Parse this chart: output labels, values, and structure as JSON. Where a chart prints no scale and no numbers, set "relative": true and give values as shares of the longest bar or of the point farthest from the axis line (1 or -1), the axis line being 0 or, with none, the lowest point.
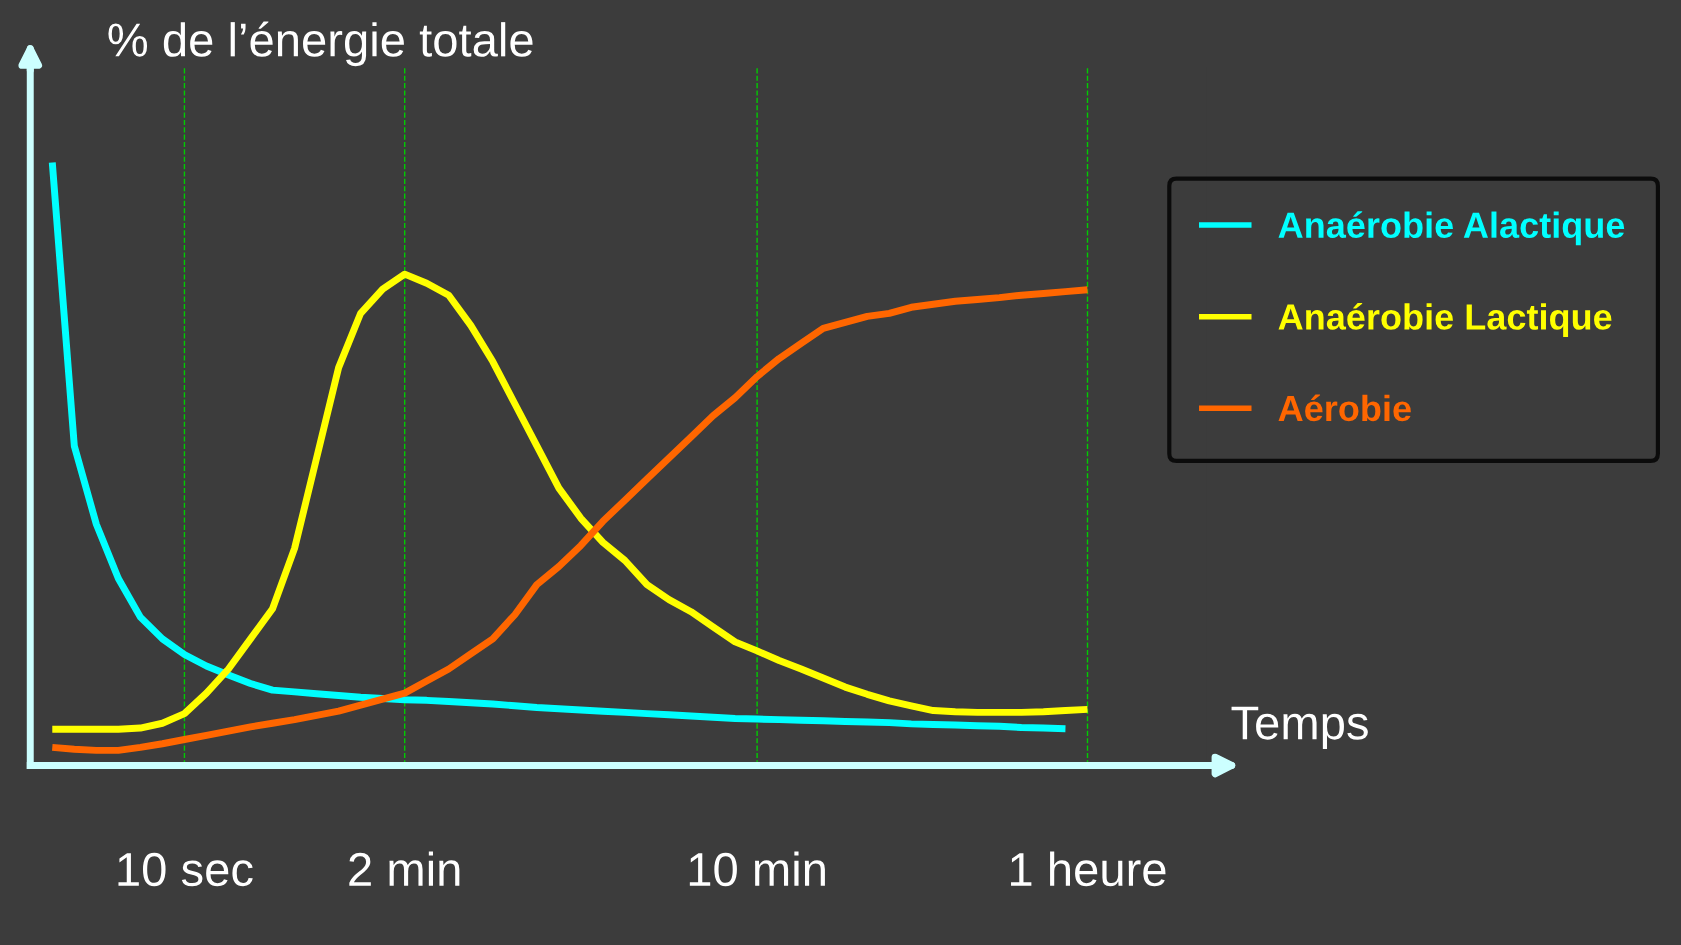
{
  "chart_data": {
    "type": "line",
    "relative": true,
    "xlabel": "Temps",
    "ylabel": "% de l’énergie totale",
    "categories": [
      null,
      null,
      null,
      null,
      null,
      null,
      null,
      "10 sec",
      null,
      null,
      null,
      null,
      null,
      null,
      null,
      null,
      null,
      "2 min",
      null,
      null,
      null,
      null,
      null,
      null,
      null,
      null,
      null,
      null,
      null,
      null,
      null,
      null,
      null,
      "10 min",
      null,
      null,
      null,
      null,
      null,
      null,
      null,
      null,
      null,
      null,
      null,
      null,
      null,
      null,
      "1 heure",
      null,
      null,
      null,
      null,
      null
    ],
    "grid": "x",
    "legend": "right",
    "series": [
      {
        "name": "Anaérobie Alactique",
        "color": "#00ffff",
        "values": [
          null,
          1.0,
          0.53,
          0.4,
          0.31,
          0.246,
          0.21,
          0.184,
          0.165,
          0.15,
          0.136,
          0.125,
          0.122,
          0.119,
          0.116,
          0.113,
          0.111,
          0.109,
          0.108,
          0.106,
          0.104,
          0.102,
          0.099,
          0.096,
          0.094,
          0.092,
          0.09,
          0.088,
          0.086,
          0.084,
          0.082,
          0.08,
          0.078,
          0.077,
          0.076,
          0.075,
          0.074,
          0.073,
          0.072,
          0.071,
          0.069,
          0.068,
          0.067,
          0.066,
          0.065,
          0.063,
          0.062,
          0.061,
          null,
          null,
          null,
          null,
          null,
          null
        ]
      },
      {
        "name": "Anaérobie Lactique",
        "color": "#ffff00",
        "values": [
          null,
          0.06,
          0.06,
          0.06,
          0.06,
          0.062,
          0.07,
          0.086,
          0.12,
          0.16,
          0.21,
          0.26,
          0.36,
          0.51,
          0.66,
          0.75,
          0.79,
          0.815,
          0.8,
          0.78,
          0.73,
          0.67,
          0.6,
          0.53,
          0.46,
          0.41,
          0.37,
          0.34,
          0.3,
          0.275,
          0.255,
          0.23,
          0.205,
          0.19,
          0.174,
          0.16,
          0.145,
          0.13,
          0.118,
          0.107,
          0.099,
          0.091,
          0.089,
          0.088,
          0.088,
          0.088,
          0.089,
          0.091,
          0.093,
          null,
          null,
          null,
          null,
          null
        ]
      },
      {
        "name": "Aérobie",
        "color": "#ff6600",
        "values": [
          null,
          0.03,
          0.027,
          0.025,
          0.025,
          0.03,
          0.036,
          0.043,
          0.05,
          0.057,
          0.064,
          0.07,
          0.076,
          0.083,
          0.09,
          0.1,
          0.11,
          0.12,
          0.14,
          0.16,
          0.185,
          0.21,
          0.25,
          0.3,
          0.33,
          0.365,
          0.405,
          0.44,
          0.475,
          0.51,
          0.545,
          0.58,
          0.61,
          0.645,
          0.675,
          0.7,
          0.725,
          0.735,
          0.745,
          0.75,
          0.76,
          0.765,
          0.77,
          0.773,
          0.776,
          0.78,
          0.783,
          0.786,
          0.789,
          null,
          null,
          null,
          null,
          null
        ]
      }
    ]
  }
}
